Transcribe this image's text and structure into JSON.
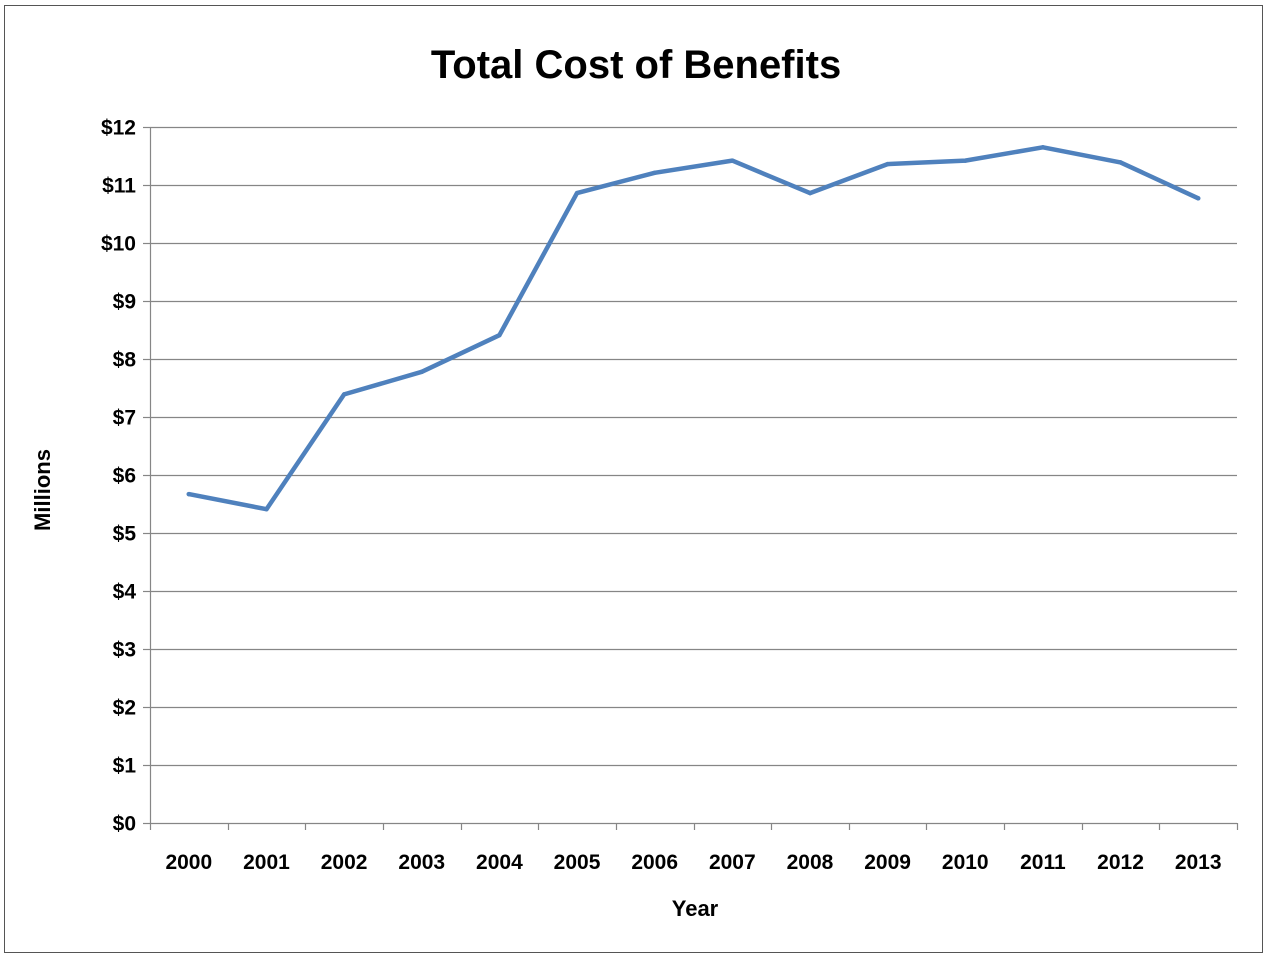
{
  "chart_data": {
    "type": "line",
    "title": "Total Cost of Benefits",
    "xlabel": "Year",
    "ylabel": "Millions",
    "categories": [
      "2000",
      "2001",
      "2002",
      "2003",
      "2004",
      "2005",
      "2006",
      "2007",
      "2008",
      "2009",
      "2010",
      "2011",
      "2012",
      "2013"
    ],
    "series": [
      {
        "values": [
          5.67,
          5.41,
          7.39,
          7.78,
          8.41,
          10.86,
          11.21,
          11.42,
          10.86,
          11.36,
          11.42,
          11.65,
          11.39,
          10.77
        ]
      }
    ],
    "ylim": [
      0,
      12
    ],
    "ytick_labels": [
      "$0",
      "$1",
      "$2",
      "$3",
      "$4",
      "$5",
      "$6",
      "$7",
      "$8",
      "$9",
      "$10",
      "$11",
      "$12"
    ],
    "grid": true,
    "legend": "none",
    "line_color": "#4F81BD",
    "gridline_color": "#868686"
  }
}
